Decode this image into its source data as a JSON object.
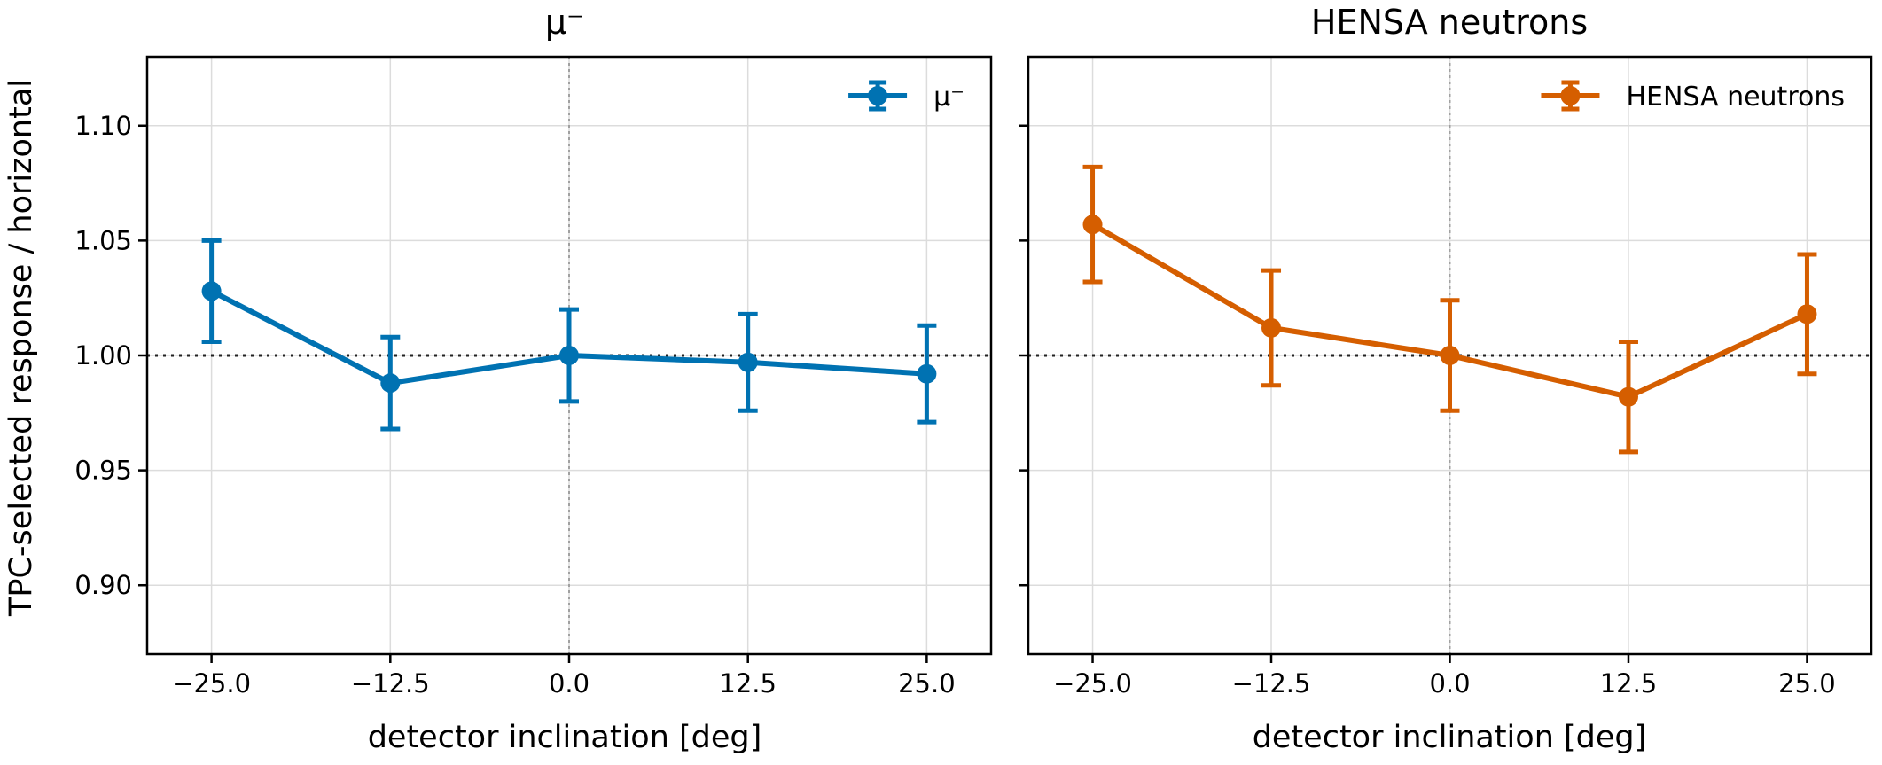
{
  "chart_data": [
    {
      "type": "line",
      "title": "μ⁻",
      "xlabel": "detector inclination [deg]",
      "ylabel": "TPC-selected response / horizontal",
      "xlim": [
        -29.5,
        29.5
      ],
      "ylim": [
        0.87,
        1.13
      ],
      "xticks": [
        "−25.0",
        "−12.5",
        "0.0",
        "12.5",
        "25.0"
      ],
      "yticks": [
        "0.90",
        "0.95",
        "1.00",
        "1.05",
        "1.10"
      ],
      "grid": true,
      "reference_line_y": 1.0,
      "reference_line_x": 0.0,
      "legend_position": "top-right",
      "color": "#0072B2",
      "series": [
        {
          "name": "μ⁻",
          "x": [
            -25.0,
            -12.5,
            0.0,
            12.5,
            25.0
          ],
          "y": [
            1.028,
            0.988,
            1.0,
            0.997,
            0.992
          ],
          "err": [
            0.022,
            0.02,
            0.02,
            0.021,
            0.021
          ]
        }
      ]
    },
    {
      "type": "line",
      "title": "HENSA neutrons",
      "xlabel": "detector inclination [deg]",
      "ylabel": "",
      "xlim": [
        -29.5,
        29.5
      ],
      "ylim": [
        0.87,
        1.13
      ],
      "xticks": [
        "−25.0",
        "−12.5",
        "0.0",
        "12.5",
        "25.0"
      ],
      "yticks": [],
      "grid": true,
      "reference_line_y": 1.0,
      "reference_line_x": 0.0,
      "legend_position": "top-right",
      "color": "#D55E00",
      "series": [
        {
          "name": "HENSA neutrons",
          "x": [
            -25.0,
            -12.5,
            0.0,
            12.5,
            25.0
          ],
          "y": [
            1.057,
            1.012,
            1.0,
            0.982,
            1.018
          ],
          "err": [
            0.025,
            0.025,
            0.024,
            0.024,
            0.026
          ]
        }
      ]
    }
  ]
}
